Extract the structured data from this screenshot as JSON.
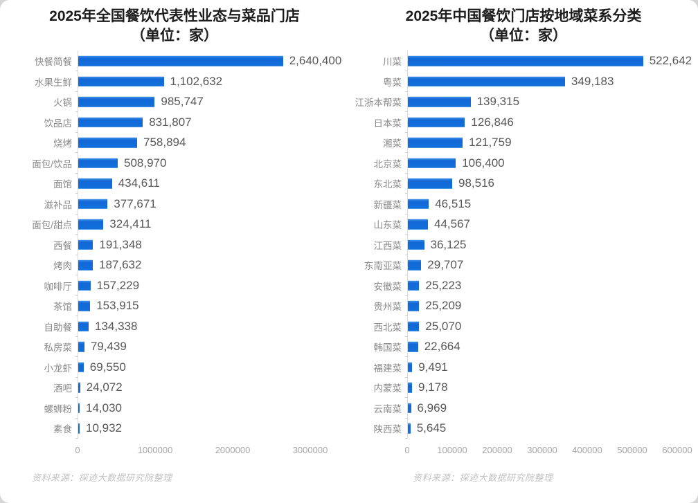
{
  "colors": {
    "bar": "#1270db",
    "title_text": "#1c1c1c",
    "value_text": "#575757",
    "category_text": "#8a8a8a",
    "axis_text": "#a6a6a6",
    "source_text": "#c2c2c2",
    "axis_line": "#d9d9d9",
    "page_background": "#d6d6d6",
    "card_background": "#ffffff"
  },
  "chart_data": [
    {
      "type": "bar",
      "orientation": "horizontal",
      "title": "2025年全国餐饮代表性业态与菜品门店",
      "subtitle": "（单位：家）",
      "categories": [
        "快餐简餐",
        "水果生鲜",
        "火锅",
        "饮品店",
        "烧烤",
        "面包/饮品",
        "面馆",
        "滋补品",
        "面包/甜点",
        "西餐",
        "烤肉",
        "咖啡厅",
        "茶馆",
        "自助餐",
        "私房菜",
        "小龙虾",
        "酒吧",
        "螺蛳粉",
        "素食"
      ],
      "values": [
        2640400,
        1102632,
        985747,
        831807,
        758894,
        508970,
        434611,
        377671,
        324411,
        191348,
        187632,
        157229,
        153915,
        134338,
        79439,
        69550,
        24072,
        14030,
        10932
      ],
      "value_labels": [
        "2,640,400",
        "1,102,632",
        "985,747",
        "831,807",
        "758,894",
        "508,970",
        "434,611",
        "377,671",
        "324,411",
        "191,348",
        "187,632",
        "157,229",
        "153,915",
        "134,338",
        "79,439",
        "69,550",
        "24,072",
        "14,030",
        "10,932"
      ],
      "xlim": [
        0,
        3000000
      ],
      "x_ticks": [
        "0",
        "1000000",
        "2000000",
        "3000000"
      ],
      "grid": "off",
      "legend": "none",
      "source": "资料来源：探迹大数据研究院整理"
    },
    {
      "type": "bar",
      "orientation": "horizontal",
      "title": "2025年中国餐饮门店按地域菜系分类",
      "subtitle": "（单位：家）",
      "categories": [
        "川菜",
        "粤菜",
        "江浙本帮菜",
        "日本菜",
        "湘菜",
        "北京菜",
        "东北菜",
        "新疆菜",
        "山东菜",
        "江西菜",
        "东南亚菜",
        "安徽菜",
        "贵州菜",
        "西北菜",
        "韩国菜",
        "福建菜",
        "内蒙菜",
        "云南菜",
        "陕西菜"
      ],
      "values": [
        522642,
        349183,
        139315,
        126846,
        121759,
        106400,
        98516,
        46515,
        44567,
        36125,
        29707,
        25223,
        25209,
        25070,
        22664,
        9491,
        9178,
        6969,
        5645
      ],
      "value_labels": [
        "522,642",
        "349,183",
        "139,315",
        "126,846",
        "121,759",
        "106,400",
        "98,516",
        "46,515",
        "44,567",
        "36,125",
        "29,707",
        "25,223",
        "25,209",
        "25,070",
        "22,664",
        "9,491",
        "9,178",
        "6,969",
        "5,645"
      ],
      "xlim": [
        0,
        600000
      ],
      "x_ticks": [
        "0",
        "100000",
        "200000",
        "300000",
        "400000",
        "500000",
        "600000"
      ],
      "grid": "off",
      "legend": "none",
      "source": "资料来源：探迹大数据研究院整理"
    }
  ]
}
